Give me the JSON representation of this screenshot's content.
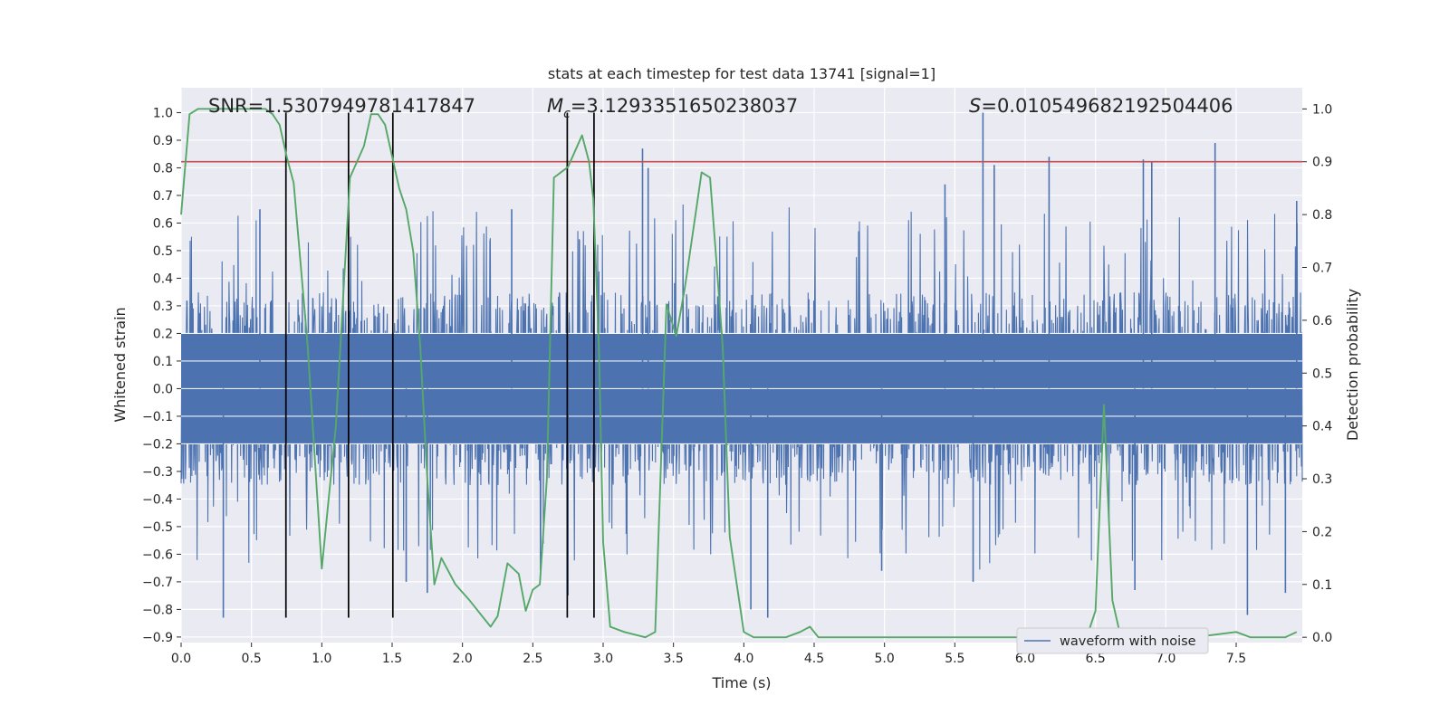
{
  "chart_data": {
    "type": "line",
    "title": "stats at each timestep for test data 13741 [signal=1]",
    "xlabel": "Time (s)",
    "ylabel": "Whitened strain",
    "y2label": "Detection probability",
    "xlim": [
      0.0,
      7.97
    ],
    "ylim": [
      -0.92,
      1.09
    ],
    "y2lim": [
      -0.01,
      1.04
    ],
    "grid": true,
    "legend_position": "lower-right",
    "xticks": [
      "0.0",
      "0.5",
      "1.0",
      "1.5",
      "2.0",
      "2.5",
      "3.0",
      "3.5",
      "4.0",
      "4.5",
      "5.0",
      "5.5",
      "6.0",
      "6.5",
      "7.0",
      "7.5"
    ],
    "yticks": [
      "1.0",
      "0.9",
      "0.8",
      "0.7",
      "0.6",
      "0.5",
      "0.4",
      "0.3",
      "0.2",
      "0.1",
      "0.0",
      "−0.1",
      "−0.2",
      "−0.3",
      "−0.4",
      "−0.5",
      "−0.6",
      "−0.7",
      "−0.8",
      "−0.9"
    ],
    "y2ticks": [
      "1.0",
      "0.9",
      "0.8",
      "0.7",
      "0.6",
      "0.5",
      "0.4",
      "0.3",
      "0.2",
      "0.1",
      "0.0"
    ],
    "annotations": {
      "snr": "SNR=1.5307949781417847",
      "mc_symbol": "M",
      "mc_sub": "c",
      "mc_value": "=3.1293351650238037",
      "s_symbol": "S",
      "s_value": "=0.010549682192504406"
    },
    "series": [
      {
        "name": "waveform with noise",
        "color": "#4c72b0",
        "axis": "left",
        "kind": "dense-noise",
        "duration_s": 7.97,
        "band_upper": 0.35,
        "band_lower": -0.35,
        "spikes": [
          {
            "x": 0.3,
            "y": -0.83
          },
          {
            "x": 0.56,
            "y": 0.65
          },
          {
            "x": 1.6,
            "y": -0.7
          },
          {
            "x": 1.75,
            "y": -0.74
          },
          {
            "x": 2.35,
            "y": 0.65
          },
          {
            "x": 2.75,
            "y": -0.75
          },
          {
            "x": 3.28,
            "y": 0.87
          },
          {
            "x": 3.32,
            "y": 0.8
          },
          {
            "x": 4.05,
            "y": -0.8
          },
          {
            "x": 4.17,
            "y": -0.83
          },
          {
            "x": 4.98,
            "y": -0.66
          },
          {
            "x": 5.43,
            "y": 0.74
          },
          {
            "x": 5.63,
            "y": -0.7
          },
          {
            "x": 5.7,
            "y": 1.0
          },
          {
            "x": 5.78,
            "y": 0.81
          },
          {
            "x": 6.17,
            "y": 0.84
          },
          {
            "x": 6.78,
            "y": -0.73
          },
          {
            "x": 6.84,
            "y": 0.83
          },
          {
            "x": 6.9,
            "y": 0.82
          },
          {
            "x": 7.35,
            "y": 0.89
          },
          {
            "x": 7.58,
            "y": -0.82
          },
          {
            "x": 7.85,
            "y": -0.74
          },
          {
            "x": 7.93,
            "y": 0.68
          }
        ]
      },
      {
        "name": "",
        "color": "#55a868",
        "axis": "right",
        "x": [
          0.0,
          0.06,
          0.12,
          0.2,
          0.3,
          0.5,
          0.6,
          0.65,
          0.7,
          0.75,
          0.8,
          0.9,
          1.0,
          1.1,
          1.2,
          1.3,
          1.35,
          1.4,
          1.45,
          1.5,
          1.55,
          1.6,
          1.65,
          1.7,
          1.75,
          1.8,
          1.85,
          1.95,
          2.05,
          2.2,
          2.25,
          2.32,
          2.4,
          2.45,
          2.5,
          2.55,
          2.6,
          2.65,
          2.75,
          2.85,
          2.9,
          2.93,
          2.97,
          3.0,
          3.05,
          3.15,
          3.3,
          3.37,
          3.45,
          3.52,
          3.58,
          3.7,
          3.76,
          3.8,
          3.85,
          3.9,
          4.0,
          4.07,
          4.15,
          4.3,
          4.4,
          4.47,
          4.53,
          4.6,
          4.8,
          5.0,
          5.3,
          5.5,
          6.0,
          6.25,
          6.35,
          6.45,
          6.5,
          6.56,
          6.62,
          6.68,
          6.75,
          7.0,
          7.2,
          7.5,
          7.6,
          7.7,
          7.85,
          7.93
        ],
        "y": [
          0.8,
          0.99,
          1.0,
          1.0,
          1.0,
          1.0,
          1.0,
          0.99,
          0.97,
          0.91,
          0.86,
          0.55,
          0.13,
          0.4,
          0.87,
          0.93,
          0.99,
          0.99,
          0.97,
          0.91,
          0.85,
          0.81,
          0.73,
          0.55,
          0.3,
          0.1,
          0.15,
          0.1,
          0.07,
          0.02,
          0.04,
          0.14,
          0.12,
          0.05,
          0.09,
          0.1,
          0.3,
          0.87,
          0.89,
          0.95,
          0.9,
          0.83,
          0.55,
          0.18,
          0.02,
          0.01,
          0.0,
          0.01,
          0.63,
          0.57,
          0.66,
          0.88,
          0.87,
          0.73,
          0.55,
          0.19,
          0.01,
          0.0,
          0.0,
          0.0,
          0.01,
          0.02,
          0.0,
          0.0,
          0.0,
          0.0,
          0.0,
          0.0,
          0.0,
          0.0,
          0.01,
          0.01,
          0.05,
          0.44,
          0.07,
          0.0,
          0.01,
          0.0,
          0.0,
          0.01,
          0.0,
          0.0,
          0.0,
          0.01
        ]
      }
    ],
    "threshold": {
      "axis": "right",
      "value": 0.9,
      "color": "#c44e52"
    },
    "vlines": {
      "x": [
        0.745,
        1.19,
        1.505,
        2.745,
        2.935
      ],
      "y_range": [
        -0.83,
        1.0
      ],
      "color": "#000000"
    }
  }
}
